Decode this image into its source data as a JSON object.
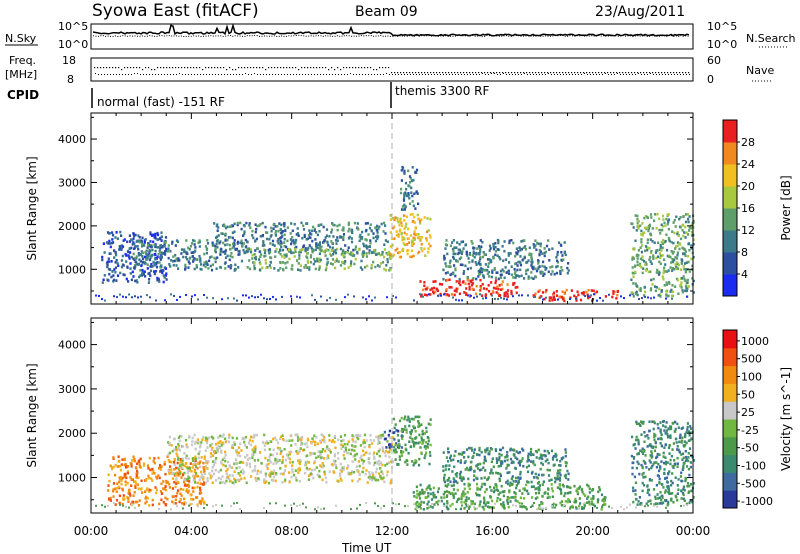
{
  "header": {
    "title": "Syowa East (fitACF)",
    "beam": "Beam 09",
    "date": "23/Aug/2011"
  },
  "labels": {
    "nsky": "N.Sky",
    "nsearch": "N.Search",
    "freq": "Freq.",
    "freq_unit": "[MHz]",
    "nave": "Nave",
    "cpid": "CPID",
    "nsky_top": "10^5",
    "nsky_bottom": "10^0",
    "freq_top": "18",
    "freq_bottom": "8",
    "nave_top": "60",
    "nave_bottom": "0",
    "cpid_left": "normal (fast) -151 RF",
    "cpid_right": "themis 3300 RF"
  },
  "chart_data": [
    {
      "type": "heatmap",
      "name": "power-panel",
      "xlabel": "Time UT",
      "ylabel": "Slant Range [km]",
      "x_ticks": [
        "00:00",
        "04:00",
        "08:00",
        "12:00",
        "16:00",
        "20:00",
        "00:00"
      ],
      "x_tick_hours": [
        0,
        4,
        8,
        12,
        16,
        20,
        24
      ],
      "y_ticks": [
        1000,
        2000,
        3000,
        4000
      ],
      "ylim": [
        200,
        4600
      ],
      "xlim": [
        0,
        24
      ],
      "colorbar_label": "Power [dB]",
      "colorbar_ticks": [
        "4",
        "8",
        "12",
        "16",
        "20",
        "24",
        "28"
      ],
      "colorbar_colors": [
        "#1a2cf0",
        "#2d4fa0",
        "#3a7a8a",
        "#5e9e6a",
        "#a8c840",
        "#f0c020",
        "#f08a20",
        "#e82020"
      ],
      "regions": [
        {
          "t0": 0.4,
          "t1": 3.0,
          "r0": 700,
          "r1": 1900,
          "level": 1
        },
        {
          "t0": 1.5,
          "t1": 6.0,
          "r0": 1000,
          "r1": 1700,
          "level": 2
        },
        {
          "t0": 4.8,
          "t1": 11.8,
          "r0": 1400,
          "r1": 2100,
          "level": 2
        },
        {
          "t0": 6.2,
          "t1": 11.9,
          "r0": 1000,
          "r1": 1500,
          "level": 3
        },
        {
          "t0": 11.9,
          "t1": 13.5,
          "r0": 1300,
          "r1": 2300,
          "level": 5
        },
        {
          "t0": 13.0,
          "t1": 17.0,
          "r0": 400,
          "r1": 800,
          "level": 7
        },
        {
          "t0": 17.5,
          "t1": 21.0,
          "r0": 300,
          "r1": 550,
          "level": 7
        },
        {
          "t0": 14.0,
          "t1": 19.0,
          "r0": 800,
          "r1": 1700,
          "level": 2
        },
        {
          "t0": 12.3,
          "t1": 13.0,
          "r0": 2400,
          "r1": 3400,
          "level": 2
        },
        {
          "t0": 21.5,
          "t1": 24.0,
          "r0": 400,
          "r1": 2300,
          "level": 3
        }
      ]
    },
    {
      "type": "heatmap",
      "name": "velocity-panel",
      "xlabel": "Time UT",
      "ylabel": "Slant Range [km]",
      "x_ticks": [
        "00:00",
        "04:00",
        "08:00",
        "12:00",
        "16:00",
        "20:00",
        "00:00"
      ],
      "x_tick_hours": [
        0,
        4,
        8,
        12,
        16,
        20,
        24
      ],
      "y_ticks": [
        1000,
        2000,
        3000,
        4000
      ],
      "ylim": [
        200,
        4600
      ],
      "xlim": [
        0,
        24
      ],
      "colorbar_label": "Velocity [m s^-1]",
      "colorbar_ticks": [
        "1000",
        "500",
        "100",
        "50",
        "25",
        "-25",
        "-50",
        "-100",
        "-500",
        "-1000"
      ],
      "colorbar_colors": [
        "#2a3a9a",
        "#3e6aa0",
        "#3a8a70",
        "#4a9a4a",
        "#70b840",
        "#c8c8c8",
        "#f0b020",
        "#f08a10",
        "#f05010",
        "#e81010"
      ],
      "regions": [
        {
          "t0": 0.6,
          "t1": 4.5,
          "r0": 400,
          "r1": 1500,
          "level": 7
        },
        {
          "t0": 3.0,
          "t1": 12.0,
          "r0": 900,
          "r1": 2000,
          "level": 5
        },
        {
          "t0": 11.6,
          "t1": 12.4,
          "r0": 1700,
          "r1": 2100,
          "level": 0
        },
        {
          "t0": 12.0,
          "t1": 13.5,
          "r0": 1300,
          "r1": 2400,
          "level": 3
        },
        {
          "t0": 12.8,
          "t1": 20.5,
          "r0": 300,
          "r1": 900,
          "level": 3
        },
        {
          "t0": 14.0,
          "t1": 19.0,
          "r0": 900,
          "r1": 1700,
          "level": 2
        },
        {
          "t0": 21.5,
          "t1": 24.0,
          "r0": 400,
          "r1": 2300,
          "level": 2
        }
      ]
    }
  ]
}
